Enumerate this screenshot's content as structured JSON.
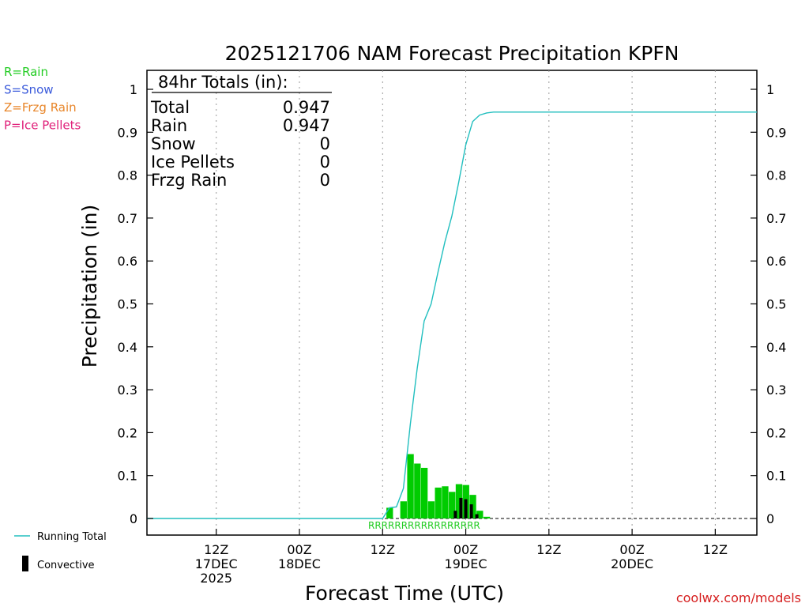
{
  "chart_data": {
    "type": "bar",
    "title": "2025121706 NAM Forecast Precipitation KPFN",
    "xlabel": "Forecast Time (UTC)",
    "ylabel": "Precipitation (in)",
    "ylim": [
      0,
      1.05
    ],
    "xlim_hours": [
      -4,
      84
    ],
    "y_ticks": [
      0,
      0.1,
      0.2,
      0.3,
      0.4,
      0.5,
      0.6,
      0.7,
      0.8,
      0.9,
      1
    ],
    "y_tick_labels": [
      "0",
      "0.1",
      "0.2",
      "0.3",
      "0.4",
      "0.5",
      "0.6",
      "0.7",
      "0.8",
      "0.9",
      "1"
    ],
    "x_ticks": [
      {
        "hour": 6,
        "lines": [
          "12Z",
          "17DEC",
          "2025"
        ]
      },
      {
        "hour": 18,
        "lines": [
          "00Z",
          "18DEC",
          ""
        ]
      },
      {
        "hour": 30,
        "lines": [
          "12Z",
          "",
          ""
        ]
      },
      {
        "hour": 42,
        "lines": [
          "00Z",
          "19DEC",
          ""
        ]
      },
      {
        "hour": 54,
        "lines": [
          "12Z",
          "",
          ""
        ]
      },
      {
        "hour": 66,
        "lines": [
          "00Z",
          "20DEC",
          ""
        ]
      },
      {
        "hour": 78,
        "lines": [
          "12Z",
          "",
          ""
        ]
      }
    ],
    "legend_types": [
      {
        "label": "R=Rain",
        "color": "#22cc22"
      },
      {
        "label": "S=Snow",
        "color": "#3b5bdb"
      },
      {
        "label": "Z=Frzg Rain",
        "color": "#e8862a"
      },
      {
        "label": "P=Ice Pellets",
        "color": "#e0207a"
      }
    ],
    "legend_lines": [
      {
        "label": "Running Total",
        "color": "#22bfbf",
        "kind": "line"
      },
      {
        "label": "Convective",
        "color": "#000000",
        "kind": "bar"
      }
    ],
    "totals": {
      "header": "84hr Totals (in):",
      "rows": [
        {
          "label": "Total",
          "value": "0.947"
        },
        {
          "label": "Rain",
          "value": "0.947"
        },
        {
          "label": "Snow",
          "value": "0"
        },
        {
          "label": "Ice Pellets",
          "value": "0"
        },
        {
          "label": "Frzg Rain",
          "value": "0"
        }
      ]
    },
    "series": [
      {
        "name": "Rain",
        "color": "#00cc00",
        "bars": [
          {
            "hour": 31,
            "value": 0.025
          },
          {
            "hour": 33,
            "value": 0.04
          },
          {
            "hour": 34,
            "value": 0.15
          },
          {
            "hour": 35,
            "value": 0.128
          },
          {
            "hour": 36,
            "value": 0.118
          },
          {
            "hour": 37,
            "value": 0.04
          },
          {
            "hour": 38,
            "value": 0.072
          },
          {
            "hour": 39,
            "value": 0.075
          },
          {
            "hour": 40,
            "value": 0.062
          },
          {
            "hour": 41,
            "value": 0.08
          },
          {
            "hour": 42,
            "value": 0.078
          },
          {
            "hour": 43,
            "value": 0.055
          },
          {
            "hour": 44,
            "value": 0.018
          },
          {
            "hour": 45,
            "value": 0.004
          }
        ]
      },
      {
        "name": "Convective",
        "color": "#000000",
        "bars": [
          {
            "hour": 40.5,
            "value": 0.018
          },
          {
            "hour": 41.3,
            "value": 0.048
          },
          {
            "hour": 42.0,
            "value": 0.045
          },
          {
            "hour": 42.8,
            "value": 0.033
          },
          {
            "hour": 43.6,
            "value": 0.01
          }
        ]
      },
      {
        "name": "Running Total",
        "color": "#22bfbf",
        "points": [
          {
            "hour": -4,
            "value": 0
          },
          {
            "hour": 30,
            "value": 0
          },
          {
            "hour": 31,
            "value": 0.025
          },
          {
            "hour": 32,
            "value": 0.027
          },
          {
            "hour": 33,
            "value": 0.07
          },
          {
            "hour": 34,
            "value": 0.22
          },
          {
            "hour": 35,
            "value": 0.35
          },
          {
            "hour": 36,
            "value": 0.46
          },
          {
            "hour": 37,
            "value": 0.5
          },
          {
            "hour": 38,
            "value": 0.575
          },
          {
            "hour": 39,
            "value": 0.645
          },
          {
            "hour": 40,
            "value": 0.705
          },
          {
            "hour": 41,
            "value": 0.785
          },
          {
            "hour": 42,
            "value": 0.87
          },
          {
            "hour": 43,
            "value": 0.925
          },
          {
            "hour": 44,
            "value": 0.94
          },
          {
            "hour": 45,
            "value": 0.945
          },
          {
            "hour": 46,
            "value": 0.947
          },
          {
            "hour": 84,
            "value": 0.947
          }
        ]
      }
    ],
    "ptype_markers": {
      "text": "RRRRRRRRRRRRRRRRR",
      "color": "#22cc22"
    },
    "credit": "coolwx.com/models"
  }
}
